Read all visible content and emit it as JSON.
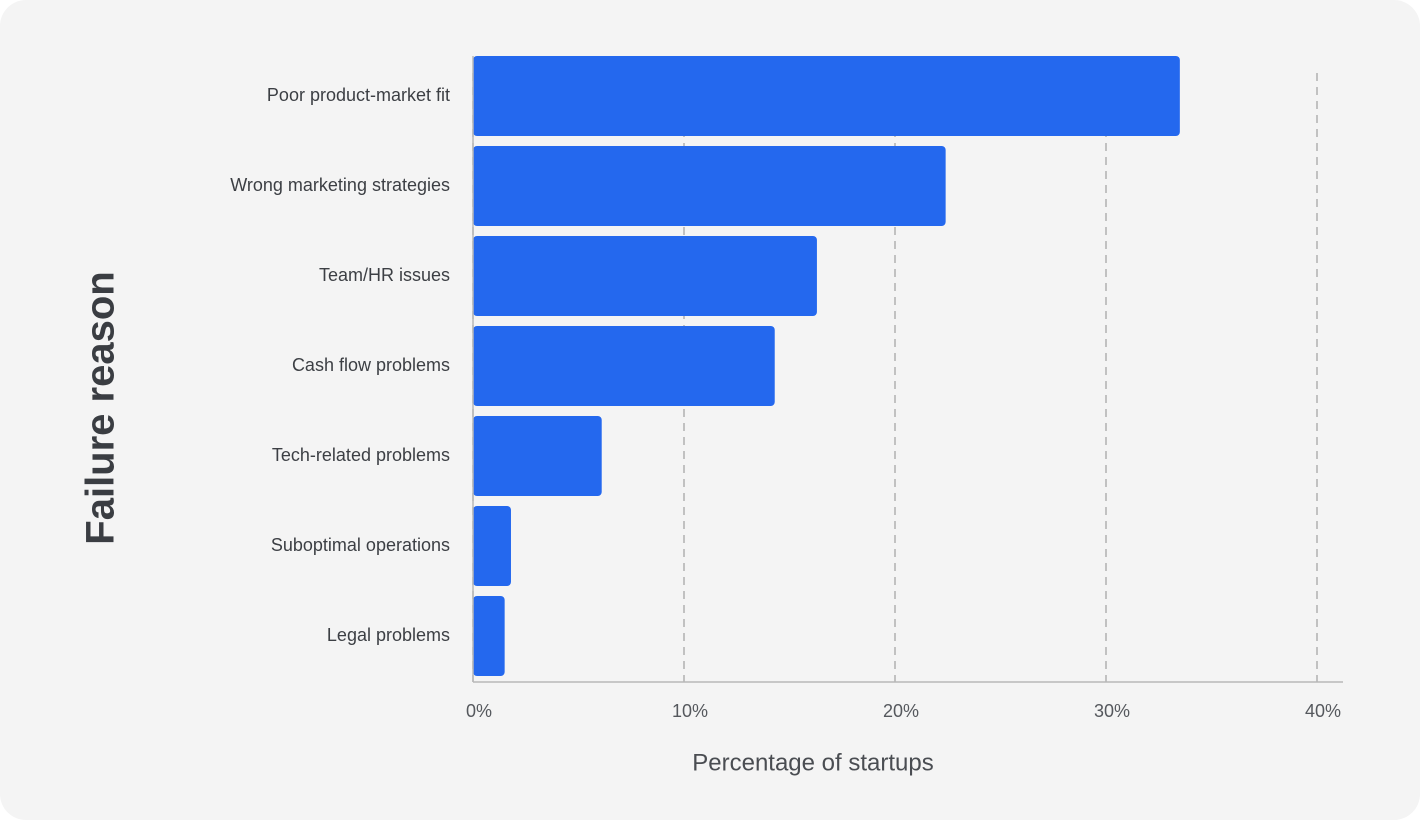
{
  "chart_data": {
    "type": "hbar",
    "y_label": "Failure reason",
    "x_label": "Percentage of startups",
    "categories": [
      "Poor product-market fit",
      "Wrong marketing strategies",
      "Team/HR issues",
      "Cash flow problems",
      "Tech-related problems",
      "Suboptimal operations",
      "Legal problems"
    ],
    "values": [
      33.5,
      22.4,
      16.3,
      14.3,
      6.1,
      1.8,
      1.5
    ],
    "color": "#2468ee",
    "xlim": [
      0,
      40
    ],
    "xticks": [
      {
        "value": 0,
        "label": "0%"
      },
      {
        "value": 10,
        "label": "10%"
      },
      {
        "value": 20,
        "label": "20%"
      },
      {
        "value": 30,
        "label": "30%"
      },
      {
        "value": 40,
        "label": "40%"
      }
    ],
    "grid": true
  }
}
